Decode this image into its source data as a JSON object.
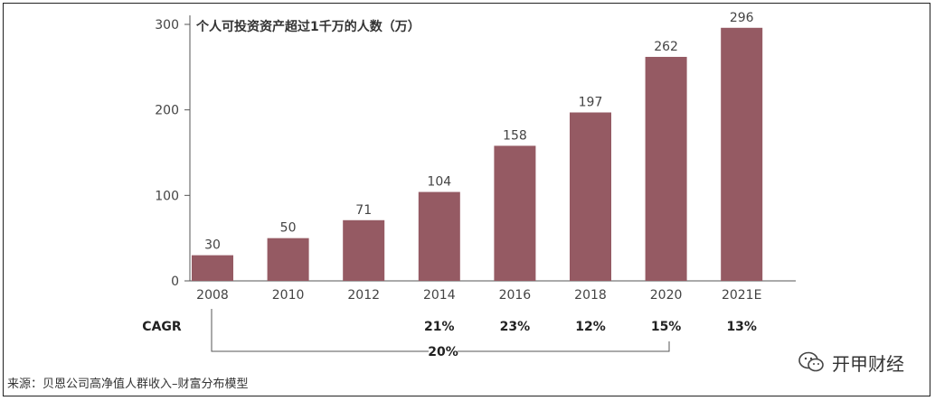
{
  "chart_data": {
    "type": "bar",
    "title": "个人可投资资产超过1千万的人数（万）",
    "categories": [
      "2008",
      "2010",
      "2012",
      "2014",
      "2016",
      "2018",
      "2020",
      "2021E"
    ],
    "values": [
      30,
      50,
      71,
      104,
      158,
      197,
      262,
      296
    ],
    "value_labels": [
      "30",
      "50",
      "71",
      "104",
      "158",
      "197",
      "262",
      "296"
    ],
    "yticks": [
      "0",
      "100",
      "200",
      "300"
    ],
    "ylim": [
      0,
      300
    ],
    "bar_color": "#955a63",
    "cagr_label": "CAGR",
    "cagr": [
      "",
      "",
      "",
      "21%",
      "23%",
      "12%",
      "15%",
      "13%"
    ],
    "overall_cagr": "20%"
  },
  "source": "来源：贝恩公司高净值人群收入–财富分布模型",
  "brand": {
    "name": "开甲财经",
    "icon": "wechat-icon"
  }
}
